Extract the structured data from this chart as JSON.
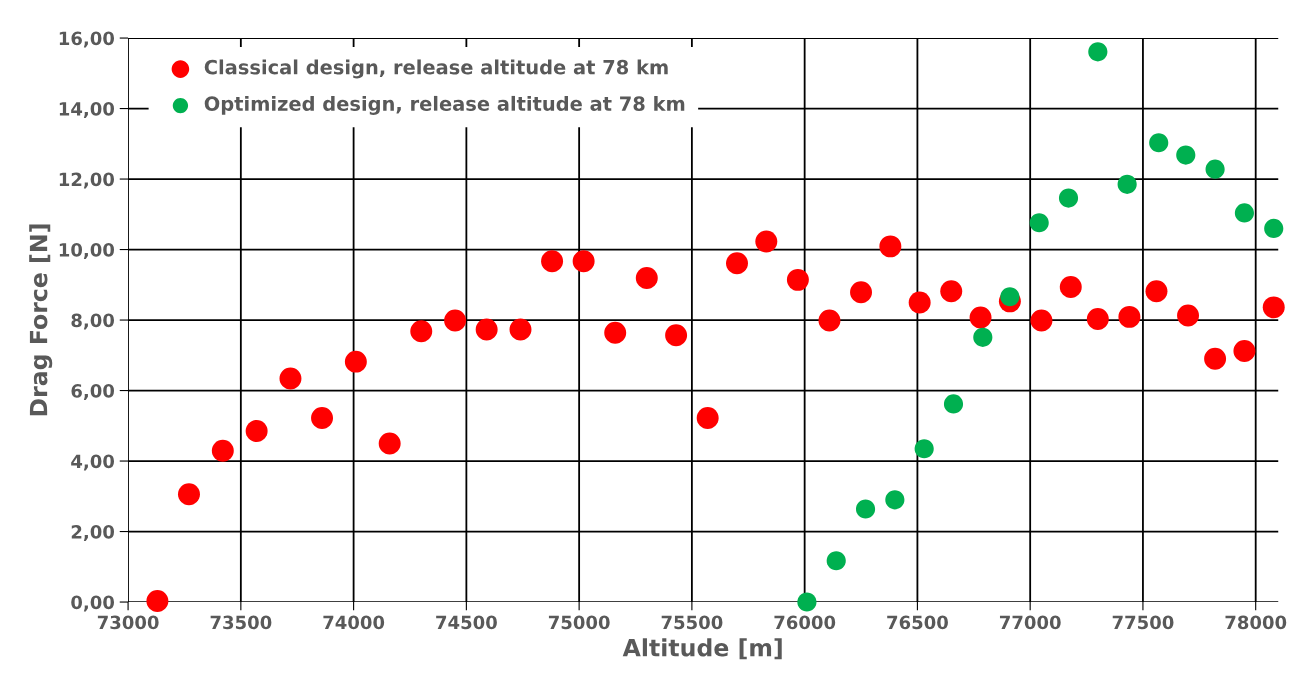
{
  "chart_data": {
    "type": "scatter",
    "xlabel": "Altitude [m]",
    "ylabel": "Drag Force [N]",
    "xlim": [
      73000,
      78100
    ],
    "xticks": [
      73000,
      73500,
      74000,
      74500,
      75000,
      75500,
      76000,
      76500,
      77000,
      77500,
      78000
    ],
    "ylim": [
      0,
      16
    ],
    "yticks": [
      {
        "value": 0,
        "label": "0,00"
      },
      {
        "value": 2,
        "label": "2,00"
      },
      {
        "value": 4,
        "label": "4,00"
      },
      {
        "value": 6,
        "label": "6,00"
      },
      {
        "value": 8,
        "label": "8,00"
      },
      {
        "value": 10,
        "label": "10,00"
      },
      {
        "value": 12,
        "label": "12,00"
      },
      {
        "value": 14,
        "label": "14,00"
      },
      {
        "value": 16,
        "label": "16,00"
      }
    ],
    "grid": true,
    "legend": "top left",
    "marker": "circle",
    "series": [
      {
        "name": "Classical design, release altitude at 78 km",
        "color": "#ff0000",
        "x": [
          73130,
          73270,
          73420,
          73570,
          73720,
          73860,
          74010,
          74160,
          74300,
          74450,
          74590,
          74740,
          74880,
          75020,
          75160,
          75300,
          75430,
          75570,
          75700,
          75830,
          75970,
          76110,
          76250,
          76380,
          76510,
          76650,
          76780,
          76910,
          77050,
          77180,
          77300,
          77440,
          77560,
          77700,
          77820,
          77950,
          78080
        ],
        "values": [
          0.03,
          3.06,
          4.29,
          4.85,
          6.34,
          5.22,
          6.82,
          4.5,
          7.68,
          7.99,
          7.73,
          7.73,
          9.67,
          9.67,
          7.64,
          9.19,
          7.57,
          5.22,
          9.61,
          10.23,
          9.14,
          7.99,
          8.79,
          10.09,
          8.5,
          8.82,
          8.07,
          8.53,
          7.99,
          8.94,
          8.03,
          8.09,
          8.82,
          8.13,
          6.9,
          7.12,
          8.36
        ]
      },
      {
        "name": "Optimized design, release altitude at 78 km",
        "color": "#00b050",
        "x": [
          76010,
          76140,
          76270,
          76400,
          76530,
          76660,
          76790,
          76910,
          77040,
          77170,
          77300,
          77430,
          77570,
          77690,
          77820,
          77950,
          78080
        ],
        "values": [
          0.0,
          1.17,
          2.64,
          2.9,
          4.35,
          5.62,
          7.51,
          8.66,
          10.76,
          11.46,
          15.61,
          11.85,
          13.03,
          12.68,
          12.28,
          11.04,
          10.6
        ]
      }
    ]
  }
}
